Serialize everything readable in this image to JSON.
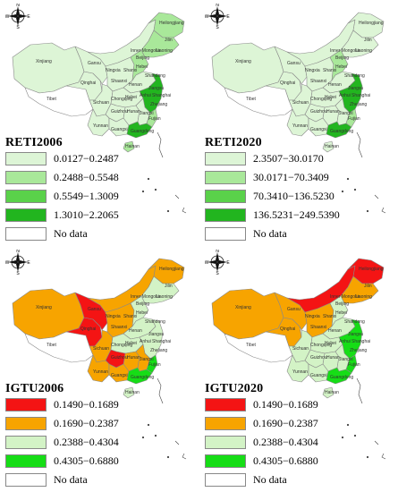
{
  "colors": {
    "reti": [
      "#ddf5d6",
      "#a9e89a",
      "#5ad14a",
      "#22b51f"
    ],
    "igtu": [
      "#f41414",
      "#f7a400",
      "#d3f3c6",
      "#16dd16"
    ],
    "nodata": "#ffffff"
  },
  "compass_labels": {
    "n": "N",
    "s": "S",
    "e": "E",
    "w": "W"
  },
  "province_labels": {
    "xinjiang": "Xinjiang",
    "tibet": "Tibet",
    "qinghai": "Qinghai",
    "gansu": "Gansu",
    "inner_mongolia": "Inner Mongolia",
    "heilongjiang": "Heilongjiang",
    "jilin": "Jilin",
    "liaoning": "Liaoning",
    "beijing": "Beijing",
    "hebei": "Hebei",
    "shanxi": "Shanxi",
    "shaanxi": "Shaanxi",
    "ningxia": "Ningxia",
    "henan": "Henan",
    "shandong": "Shandong",
    "jiangsu": "Jiangsu",
    "anhui": "Anhui",
    "shanghai": "Shanghai",
    "hubei": "Hubei",
    "zhejiang": "Zhejiang",
    "sichuan": "Sichuan",
    "chongqing": "Chongqing",
    "hunan": "Hunan",
    "jiangxi": "Jiangxi",
    "fujian": "Fujian",
    "guizhou": "Guizhou",
    "yunnan": "Yunnan",
    "guangxi": "Guangxi",
    "guangdong": "Guangdong",
    "hainan": "Hainan"
  },
  "panels": [
    {
      "id": "reti2006",
      "title": "RETI2006",
      "palette": "reti",
      "legend": [
        "0.0127−0.2487",
        "0.2488−0.5548",
        "0.5549−1.3009",
        "1.3010−2.2065"
      ],
      "nodata_label": "No data",
      "regions": {
        "xinjiang": 0,
        "tibet": -1,
        "qinghai": 0,
        "gansu": 0,
        "inner_mongolia": 0,
        "heilongjiang": 1,
        "northeast": 1,
        "north_china": 0,
        "hebei": 1,
        "henan": 0,
        "sichuan": 0,
        "central": 0,
        "hunan": 0,
        "jiangxi": 0,
        "yunnan": 0,
        "guizhou": 0,
        "guangxi": 0,
        "east": 3,
        "guangdong": 3,
        "fujian": 1,
        "hainan": 1
      }
    },
    {
      "id": "reti2020",
      "title": "RETI2020",
      "palette": "reti",
      "legend": [
        "2.3507−30.0170",
        "30.0171−70.3409",
        "70.3410−136.5230",
        "136.5231−249.5390"
      ],
      "nodata_label": "No data",
      "regions": {
        "xinjiang": 0,
        "tibet": -1,
        "qinghai": 0,
        "gansu": 0,
        "inner_mongolia": 0,
        "heilongjiang": 0,
        "northeast": 0,
        "north_china": 0,
        "hebei": 1,
        "henan": 0,
        "sichuan": 0,
        "central": 0,
        "hunan": 0,
        "jiangxi": 0,
        "yunnan": 0,
        "guizhou": 0,
        "guangxi": 0,
        "east": 3,
        "guangdong": 3,
        "fujian": 1,
        "hainan": 0
      }
    },
    {
      "id": "igtu2006",
      "title": "IGTU2006",
      "palette": "igtu",
      "legend": [
        "0.1490−0.1689",
        "0.1690−0.2387",
        "0.2388−0.4304",
        "0.4305−0.6880"
      ],
      "nodata_label": "No data",
      "regions": {
        "xinjiang": 1,
        "tibet": -1,
        "qinghai": 0,
        "gansu": 0,
        "inner_mongolia": 1,
        "heilongjiang": 1,
        "northeast": 2,
        "north_china": 1,
        "hebei": 2,
        "henan": 2,
        "sichuan": 1,
        "central": 2,
        "hunan": 1,
        "jiangxi": 1,
        "yunnan": 1,
        "guizhou": 0,
        "guangxi": 1,
        "east": 2,
        "guangdong": 3,
        "fujian": 3,
        "hainan": 2
      }
    },
    {
      "id": "igtu2020",
      "title": "IGTU2020",
      "palette": "igtu",
      "legend": [
        "0.1490−0.1689",
        "0.1690−0.2387",
        "0.2388−0.4304",
        "0.4305−0.6880"
      ],
      "nodata_label": "No data",
      "regions": {
        "xinjiang": 1,
        "tibet": -1,
        "qinghai": 1,
        "gansu": 1,
        "inner_mongolia": 0,
        "heilongjiang": 0,
        "northeast": 1,
        "north_china": 1,
        "hebei": 2,
        "henan": 2,
        "sichuan": 2,
        "central": 2,
        "hunan": 2,
        "jiangxi": 2,
        "yunnan": 2,
        "guizhou": 2,
        "guangxi": 2,
        "east": 3,
        "guangdong": 3,
        "fujian": 3,
        "hainan": 2
      }
    }
  ]
}
